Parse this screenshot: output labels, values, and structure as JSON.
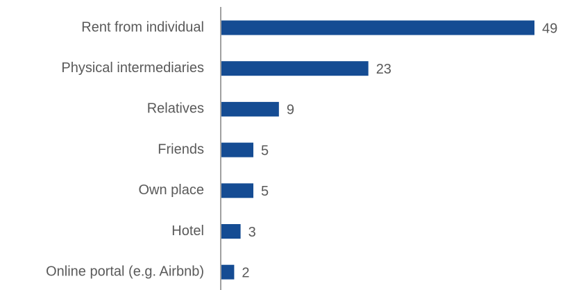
{
  "chart_data": {
    "type": "barh",
    "categories": [
      "Rent from individual",
      "Physical intermediaries",
      "Relatives",
      "Friends",
      "Own place",
      "Hotel",
      "Online portal (e.g. Airbnb)"
    ],
    "values": [
      49,
      23,
      9,
      5,
      5,
      3,
      2
    ],
    "color": "#154c93"
  }
}
